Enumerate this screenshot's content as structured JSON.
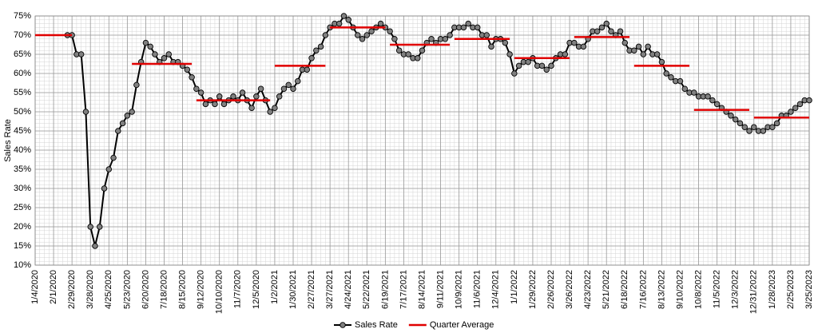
{
  "chart_data": {
    "type": "line",
    "y_label": "Sales Rate",
    "categories": [
      "1/4/2020",
      null,
      null,
      null,
      "2/1/2020",
      null,
      null,
      null,
      "2/29/2020",
      null,
      null,
      null,
      "3/28/2020",
      null,
      null,
      null,
      "4/25/2020",
      null,
      null,
      null,
      "5/23/2020",
      null,
      null,
      null,
      "6/20/2020",
      null,
      null,
      null,
      "7/18/2020",
      null,
      null,
      null,
      "8/15/2020",
      null,
      null,
      null,
      "9/12/2020",
      null,
      null,
      null,
      "10/10/2020",
      null,
      null,
      null,
      "11/7/2020",
      null,
      null,
      null,
      "12/5/2020",
      null,
      null,
      null,
      "1/2/2021",
      null,
      null,
      null,
      "1/30/2021",
      null,
      null,
      null,
      "2/27/2021",
      null,
      null,
      null,
      "3/27/2021",
      null,
      null,
      null,
      "4/24/2021",
      null,
      null,
      null,
      "5/22/2021",
      null,
      null,
      null,
      "6/19/2021",
      null,
      null,
      null,
      "7/17/2021",
      null,
      null,
      null,
      "8/14/2021",
      null,
      null,
      null,
      "9/11/2021",
      null,
      null,
      null,
      "10/9/2021",
      null,
      null,
      null,
      "11/6/2021",
      null,
      null,
      null,
      "12/4/2021",
      null,
      null,
      null,
      "1/1/2022",
      null,
      null,
      null,
      "1/29/2022",
      null,
      null,
      null,
      "2/26/2022",
      null,
      null,
      null,
      "3/26/2022",
      null,
      null,
      null,
      "4/23/2022",
      null,
      null,
      null,
      "5/21/2022",
      null,
      null,
      null,
      "6/18/2022",
      null,
      null,
      null,
      "7/16/2022",
      null,
      null,
      null,
      "8/13/2022",
      null,
      null,
      null,
      "9/10/2022",
      null,
      null,
      null,
      "10/8/2022",
      null,
      null,
      null,
      "11/5/2022",
      null,
      null,
      null,
      "12/3/2022",
      null,
      null,
      null,
      "12/31/2022",
      null,
      null,
      null,
      "1/28/2023",
      null,
      null,
      null,
      "2/25/2023",
      null,
      null,
      null,
      "3/25/2023"
    ],
    "series": [
      {
        "name": "Sales Rate",
        "color": "#000000",
        "marker_color": "#808080",
        "markers": true,
        "values": [
          null,
          null,
          null,
          null,
          null,
          null,
          null,
          70,
          70,
          65,
          65,
          50,
          20,
          15,
          20,
          30,
          35,
          38,
          45,
          47,
          49,
          50,
          57,
          63,
          68,
          67,
          65,
          63,
          64,
          65,
          63,
          63,
          62,
          61,
          59,
          56,
          55,
          52,
          53,
          52,
          54,
          52,
          53,
          54,
          53,
          55,
          53,
          51,
          54,
          56,
          53,
          50,
          51,
          54,
          56,
          57,
          56,
          58,
          61,
          61,
          64,
          66,
          67,
          70,
          72,
          73,
          73,
          75,
          74,
          72,
          70,
          69,
          70,
          71,
          72,
          73,
          72,
          71,
          69,
          66,
          65,
          65,
          64,
          64,
          66,
          68,
          69,
          68,
          69,
          69,
          70,
          72,
          72,
          72,
          73,
          72,
          72,
          70,
          70,
          67,
          69,
          69,
          68,
          65,
          60,
          62,
          63,
          63,
          64,
          62,
          62,
          61,
          62,
          64,
          65,
          65,
          68,
          68,
          67,
          67,
          69,
          71,
          71,
          72,
          73,
          71,
          70,
          71,
          68,
          66,
          66,
          67,
          65,
          67,
          65,
          65,
          63,
          60,
          59,
          58,
          58,
          56,
          55,
          55,
          54,
          54,
          54,
          53,
          52,
          51,
          50,
          49,
          48,
          47,
          46,
          45,
          46,
          45,
          45,
          46,
          46,
          47,
          49,
          49,
          50,
          51,
          52,
          53,
          53
        ]
      },
      {
        "name": "Quarter Average",
        "color": "#e00000",
        "markers": false,
        "drawstyle": "runs",
        "values": [
          70,
          70,
          70,
          70,
          70,
          70,
          70,
          70,
          70,
          null,
          null,
          null,
          null,
          null,
          null,
          null,
          null,
          null,
          null,
          null,
          null,
          62.5,
          62.5,
          62.5,
          62.5,
          62.5,
          62.5,
          62.5,
          62.5,
          62.5,
          62.5,
          62.5,
          62.5,
          62.5,
          62.5,
          53,
          53,
          53,
          53,
          53,
          53,
          53,
          53,
          53,
          53,
          53,
          53,
          53,
          53,
          53,
          53,
          53,
          62,
          62,
          62,
          62,
          62,
          62,
          62,
          62,
          62,
          62,
          62,
          62,
          72,
          72,
          72,
          72,
          72,
          72,
          72,
          72,
          72,
          72,
          72,
          72,
          72,
          67.5,
          67.5,
          67.5,
          67.5,
          67.5,
          67.5,
          67.5,
          67.5,
          67.5,
          67.5,
          67.5,
          67.5,
          67.5,
          67.5,
          69,
          69,
          69,
          69,
          69,
          69,
          69,
          69,
          69,
          69,
          69,
          69,
          69,
          64,
          64,
          64,
          64,
          64,
          64,
          64,
          64,
          64,
          64,
          64,
          64,
          64,
          69.5,
          69.5,
          69.5,
          69.5,
          69.5,
          69.5,
          69.5,
          69.5,
          69.5,
          69.5,
          69.5,
          69.5,
          69.5,
          62,
          62,
          62,
          62,
          62,
          62,
          62,
          62,
          62,
          62,
          62,
          62,
          62,
          50.5,
          50.5,
          50.5,
          50.5,
          50.5,
          50.5,
          50.5,
          50.5,
          50.5,
          50.5,
          50.5,
          50.5,
          50.5,
          48.5,
          48.5,
          48.5,
          48.5,
          48.5,
          48.5,
          48.5,
          48.5,
          48.5,
          48.5,
          48.5,
          48.5,
          48.5
        ]
      }
    ],
    "ylim": [
      10,
      75
    ],
    "yticks": [
      {
        "value": 10,
        "label": "10%"
      },
      {
        "value": 15,
        "label": "15%"
      },
      {
        "value": 20,
        "label": "20%"
      },
      {
        "value": 25,
        "label": "25%"
      },
      {
        "value": 30,
        "label": "30%"
      },
      {
        "value": 35,
        "label": "35%"
      },
      {
        "value": 40,
        "label": "40%"
      },
      {
        "value": 45,
        "label": "45%"
      },
      {
        "value": 50,
        "label": "50%"
      },
      {
        "value": 55,
        "label": "55%"
      },
      {
        "value": 60,
        "label": "60%"
      },
      {
        "value": 65,
        "label": "65%"
      },
      {
        "value": 70,
        "label": "70%"
      },
      {
        "value": 75,
        "label": "75%"
      }
    ],
    "grid": true,
    "legend": "bottom"
  }
}
